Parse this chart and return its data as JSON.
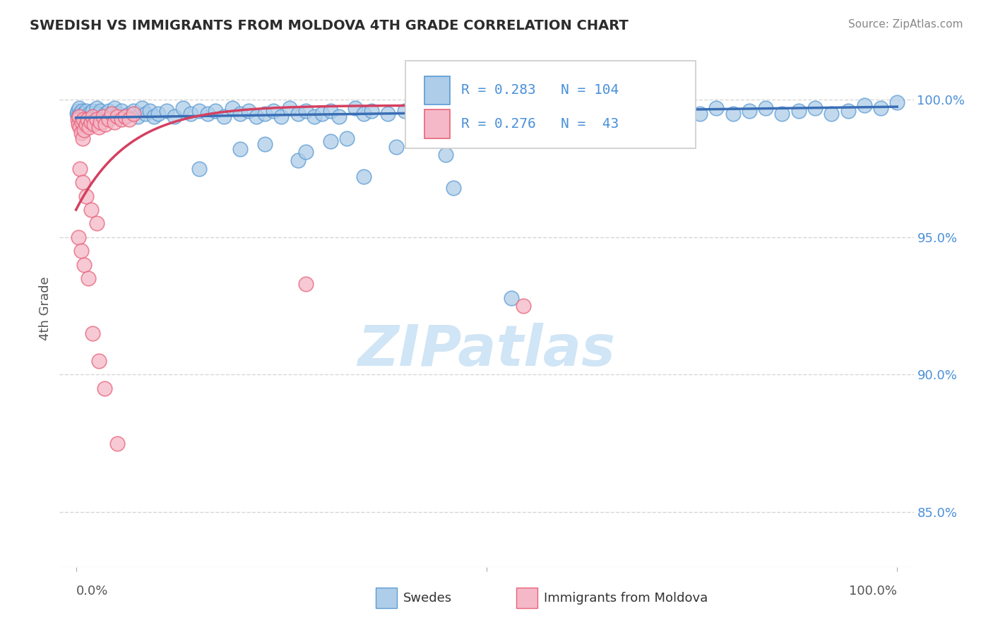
{
  "title": "SWEDISH VS IMMIGRANTS FROM MOLDOVA 4TH GRADE CORRELATION CHART",
  "source": "Source: ZipAtlas.com",
  "ylabel": "4th Grade",
  "watermark": "ZIPatlas",
  "blue_R": 0.283,
  "blue_N": 104,
  "pink_R": 0.276,
  "pink_N": 43,
  "blue_label": "Swedes",
  "pink_label": "Immigrants from Moldova",
  "ytick_vals": [
    100.0,
    95.0,
    90.0,
    85.0
  ],
  "ytick_labels": [
    "100.0%",
    "95.0%",
    "90.0%",
    "85.0%"
  ],
  "blue_face": "#aecde8",
  "blue_edge": "#5b9bd5",
  "pink_face": "#f4b8c8",
  "pink_edge": "#e8637a",
  "blue_line": "#3a6eb5",
  "pink_line": "#d44060",
  "grid_color": "#cccccc",
  "title_color": "#2c2c2c",
  "source_color": "#888888",
  "axis_label_color": "#555555",
  "tick_label_color": "#4a90d9",
  "watermark_color": "#d0e5f5",
  "ylim_min": 83.0,
  "ylim_max": 101.8,
  "xlim_min": -0.02,
  "xlim_max": 1.02,
  "marker_size": 220,
  "blue_trend_x0": 0.0,
  "blue_trend_x1": 1.0,
  "blue_trend_y0": 99.35,
  "blue_trend_y1": 99.75,
  "pink_trend_x0": 0.0,
  "pink_trend_x1": 0.18,
  "pink_trend_y0": 96.2,
  "pink_trend_y1": 99.5,
  "blue_points_x": [
    0.001,
    0.002,
    0.003,
    0.004,
    0.005,
    0.006,
    0.007,
    0.008,
    0.009,
    0.01,
    0.012,
    0.014,
    0.016,
    0.018,
    0.02,
    0.022,
    0.025,
    0.028,
    0.03,
    0.033,
    0.036,
    0.04,
    0.043,
    0.047,
    0.05,
    0.055,
    0.06,
    0.065,
    0.07,
    0.075,
    0.08,
    0.085,
    0.09,
    0.095,
    0.1,
    0.11,
    0.12,
    0.13,
    0.14,
    0.15,
    0.16,
    0.17,
    0.18,
    0.19,
    0.2,
    0.21,
    0.22,
    0.23,
    0.24,
    0.25,
    0.26,
    0.27,
    0.28,
    0.29,
    0.3,
    0.31,
    0.32,
    0.34,
    0.35,
    0.36,
    0.38,
    0.4,
    0.42,
    0.44,
    0.46,
    0.48,
    0.5,
    0.52,
    0.54,
    0.56,
    0.58,
    0.6,
    0.62,
    0.64,
    0.66,
    0.68,
    0.7,
    0.72,
    0.74,
    0.76,
    0.78,
    0.8,
    0.82,
    0.84,
    0.86,
    0.88,
    0.9,
    0.92,
    0.94,
    0.96,
    0.98,
    1.0,
    0.35,
    0.46,
    0.31,
    0.27,
    0.2,
    0.15,
    0.53,
    0.45,
    0.39,
    0.33,
    0.28,
    0.23
  ],
  "blue_points_y": [
    99.5,
    99.6,
    99.4,
    99.7,
    99.5,
    99.3,
    99.6,
    99.4,
    99.5,
    99.3,
    99.6,
    99.4,
    99.5,
    99.3,
    99.6,
    99.4,
    99.7,
    99.5,
    99.6,
    99.4,
    99.5,
    99.6,
    99.4,
    99.7,
    99.5,
    99.6,
    99.4,
    99.5,
    99.6,
    99.4,
    99.7,
    99.5,
    99.6,
    99.4,
    99.5,
    99.6,
    99.4,
    99.7,
    99.5,
    99.6,
    99.5,
    99.6,
    99.4,
    99.7,
    99.5,
    99.6,
    99.4,
    99.5,
    99.6,
    99.4,
    99.7,
    99.5,
    99.6,
    99.4,
    99.5,
    99.6,
    99.4,
    99.7,
    99.5,
    99.6,
    99.5,
    99.6,
    99.7,
    99.5,
    99.6,
    99.4,
    99.7,
    99.5,
    99.6,
    99.4,
    99.5,
    99.6,
    99.7,
    99.5,
    99.6,
    99.5,
    99.7,
    99.5,
    99.6,
    99.5,
    99.7,
    99.5,
    99.6,
    99.7,
    99.5,
    99.6,
    99.7,
    99.5,
    99.6,
    99.8,
    99.7,
    99.9,
    97.2,
    96.8,
    98.5,
    97.8,
    98.2,
    97.5,
    92.8,
    98.0,
    98.3,
    98.6,
    98.1,
    98.4
  ],
  "pink_points_x": [
    0.002,
    0.003,
    0.004,
    0.005,
    0.006,
    0.007,
    0.008,
    0.009,
    0.01,
    0.012,
    0.014,
    0.016,
    0.018,
    0.02,
    0.022,
    0.025,
    0.028,
    0.03,
    0.033,
    0.036,
    0.04,
    0.043,
    0.047,
    0.05,
    0.055,
    0.06,
    0.065,
    0.07,
    0.005,
    0.008,
    0.012,
    0.018,
    0.025,
    0.003,
    0.006,
    0.01,
    0.015,
    0.28,
    0.545,
    0.02,
    0.028,
    0.035,
    0.05
  ],
  "pink_points_y": [
    99.3,
    99.1,
    99.4,
    99.0,
    98.8,
    99.2,
    98.6,
    99.3,
    98.9,
    99.1,
    99.3,
    99.0,
    99.2,
    99.4,
    99.1,
    99.3,
    99.0,
    99.2,
    99.4,
    99.1,
    99.3,
    99.5,
    99.2,
    99.4,
    99.3,
    99.4,
    99.3,
    99.5,
    97.5,
    97.0,
    96.5,
    96.0,
    95.5,
    95.0,
    94.5,
    94.0,
    93.5,
    93.3,
    92.5,
    91.5,
    90.5,
    89.5,
    87.5
  ]
}
